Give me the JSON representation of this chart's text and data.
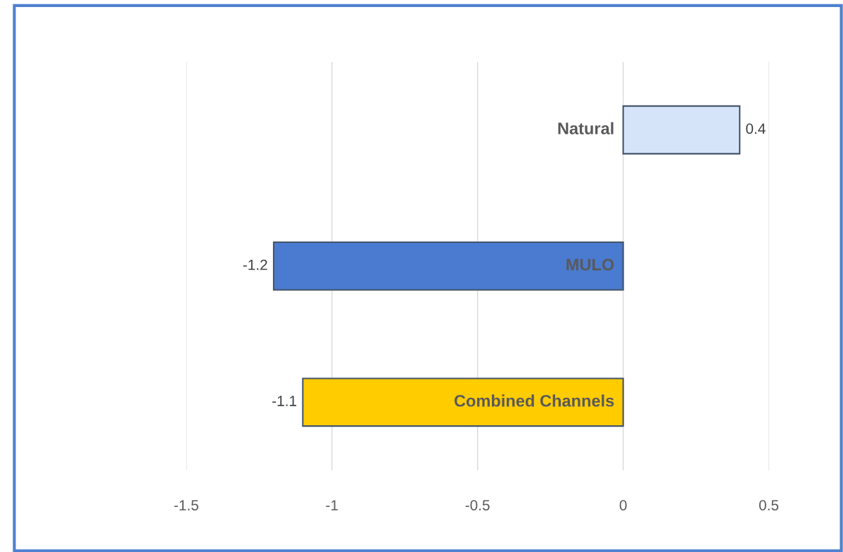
{
  "chart_data": {
    "type": "bar",
    "orientation": "horizontal",
    "categories": [
      "Natural",
      "MULO",
      "Combined Channels"
    ],
    "values": [
      0.4,
      -1.2,
      -1.1
    ],
    "colors": [
      "#d6e4fa",
      "#4a7bd0",
      "#ffcc00"
    ],
    "xlim": [
      -1.5,
      0.5
    ],
    "xticks": [
      -1.5,
      -1,
      -0.5,
      0,
      0.5
    ],
    "grid": "x",
    "data_labels": true
  }
}
